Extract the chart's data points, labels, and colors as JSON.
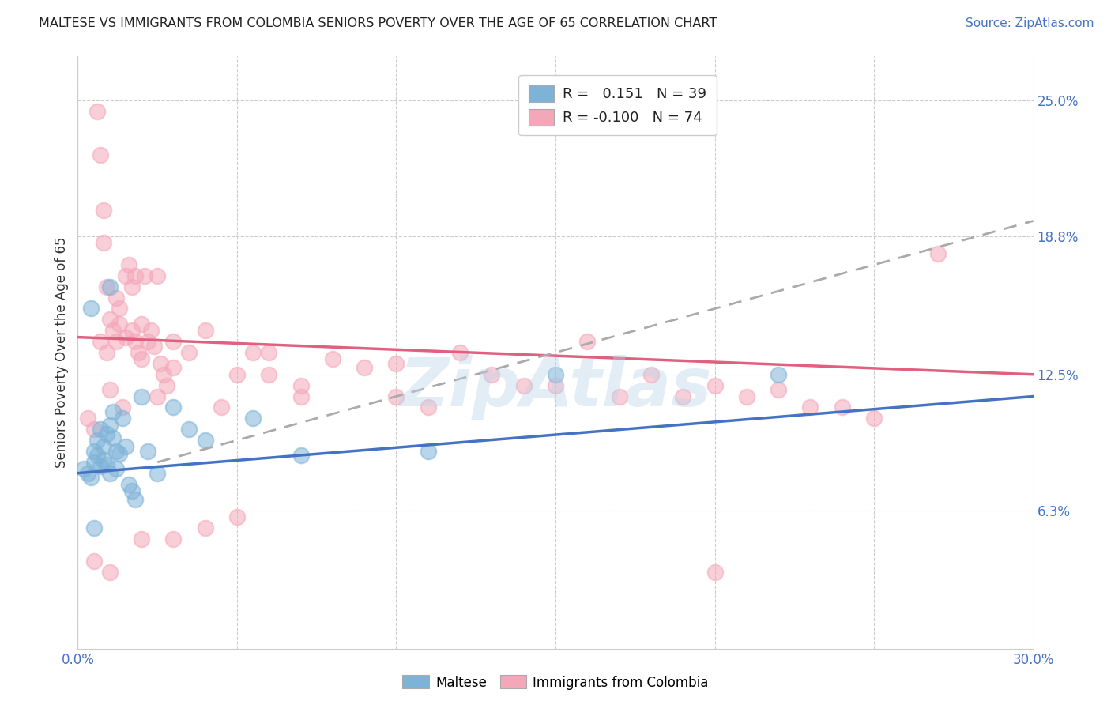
{
  "title": "MALTESE VS IMMIGRANTS FROM COLOMBIA SENIORS POVERTY OVER THE AGE OF 65 CORRELATION CHART",
  "source": "Source: ZipAtlas.com",
  "ylabel": "Seniors Poverty Over the Age of 65",
  "xlim": [
    0.0,
    30.0
  ],
  "ylim": [
    0.0,
    27.0
  ],
  "ytick_labels_right": [
    "6.3%",
    "12.5%",
    "18.8%",
    "25.0%"
  ],
  "ytick_values_right": [
    6.3,
    12.5,
    18.8,
    25.0
  ],
  "blue_R": 0.151,
  "blue_N": 39,
  "pink_R": -0.1,
  "pink_N": 74,
  "blue_color": "#7EB3D8",
  "pink_color": "#F4A7B9",
  "blue_line_color": "#4472C4",
  "pink_line_color": "#E06080",
  "dash_line_color": "#AAAAAA",
  "blue_line_x0": 0.0,
  "blue_line_y0": 8.0,
  "blue_line_x1": 30.0,
  "blue_line_y1": 11.5,
  "pink_line_x0": 0.0,
  "pink_line_y0": 14.2,
  "pink_line_x1": 30.0,
  "pink_line_y1": 12.5,
  "dash_line_x0": 2.5,
  "dash_line_y0": 8.5,
  "dash_line_x1": 30.0,
  "dash_line_y1": 19.5,
  "blue_scatter_x": [
    0.2,
    0.3,
    0.4,
    0.5,
    0.5,
    0.6,
    0.6,
    0.7,
    0.7,
    0.8,
    0.8,
    0.9,
    0.9,
    1.0,
    1.0,
    1.1,
    1.1,
    1.2,
    1.2,
    1.3,
    1.4,
    1.5,
    1.6,
    1.7,
    1.8,
    2.0,
    2.2,
    2.5,
    3.0,
    3.5,
    4.0,
    5.5,
    7.0,
    11.0,
    15.0,
    22.0,
    0.4,
    0.5,
    1.0
  ],
  "blue_scatter_y": [
    8.2,
    8.0,
    7.8,
    8.5,
    9.0,
    8.8,
    9.5,
    8.3,
    10.0,
    9.2,
    8.6,
    9.8,
    8.4,
    10.2,
    8.0,
    10.8,
    9.6,
    9.0,
    8.2,
    8.9,
    10.5,
    9.2,
    7.5,
    7.2,
    6.8,
    11.5,
    9.0,
    8.0,
    11.0,
    10.0,
    9.5,
    10.5,
    8.8,
    9.0,
    12.5,
    12.5,
    15.5,
    5.5,
    16.5
  ],
  "pink_scatter_x": [
    0.3,
    0.5,
    0.6,
    0.7,
    0.7,
    0.8,
    0.8,
    0.9,
    0.9,
    1.0,
    1.0,
    1.1,
    1.2,
    1.2,
    1.3,
    1.3,
    1.4,
    1.5,
    1.5,
    1.6,
    1.7,
    1.7,
    1.8,
    1.8,
    1.9,
    2.0,
    2.0,
    2.1,
    2.2,
    2.3,
    2.4,
    2.5,
    2.5,
    2.6,
    2.7,
    2.8,
    3.0,
    3.0,
    3.5,
    4.0,
    4.5,
    5.0,
    5.5,
    6.0,
    7.0,
    8.0,
    9.0,
    10.0,
    11.0,
    12.0,
    13.0,
    14.0,
    15.0,
    16.0,
    17.0,
    18.0,
    19.0,
    20.0,
    21.0,
    22.0,
    23.0,
    24.0,
    25.0,
    27.0,
    0.5,
    1.0,
    2.0,
    3.0,
    4.0,
    5.0,
    6.0,
    7.0,
    10.0,
    20.0
  ],
  "pink_scatter_y": [
    10.5,
    10.0,
    24.5,
    22.5,
    14.0,
    20.0,
    18.5,
    16.5,
    13.5,
    15.0,
    11.8,
    14.5,
    14.0,
    16.0,
    15.5,
    14.8,
    11.0,
    17.0,
    14.2,
    17.5,
    14.5,
    16.5,
    17.0,
    14.0,
    13.5,
    14.8,
    13.2,
    17.0,
    14.0,
    14.5,
    13.8,
    17.0,
    11.5,
    13.0,
    12.5,
    12.0,
    12.8,
    14.0,
    13.5,
    14.5,
    11.0,
    12.5,
    13.5,
    12.5,
    12.0,
    13.2,
    12.8,
    11.5,
    11.0,
    13.5,
    12.5,
    12.0,
    12.0,
    14.0,
    11.5,
    12.5,
    11.5,
    12.0,
    11.5,
    11.8,
    11.0,
    11.0,
    10.5,
    18.0,
    4.0,
    3.5,
    5.0,
    5.0,
    5.5,
    6.0,
    13.5,
    11.5,
    13.0,
    3.5
  ],
  "watermark_text": "ZipAtlas"
}
